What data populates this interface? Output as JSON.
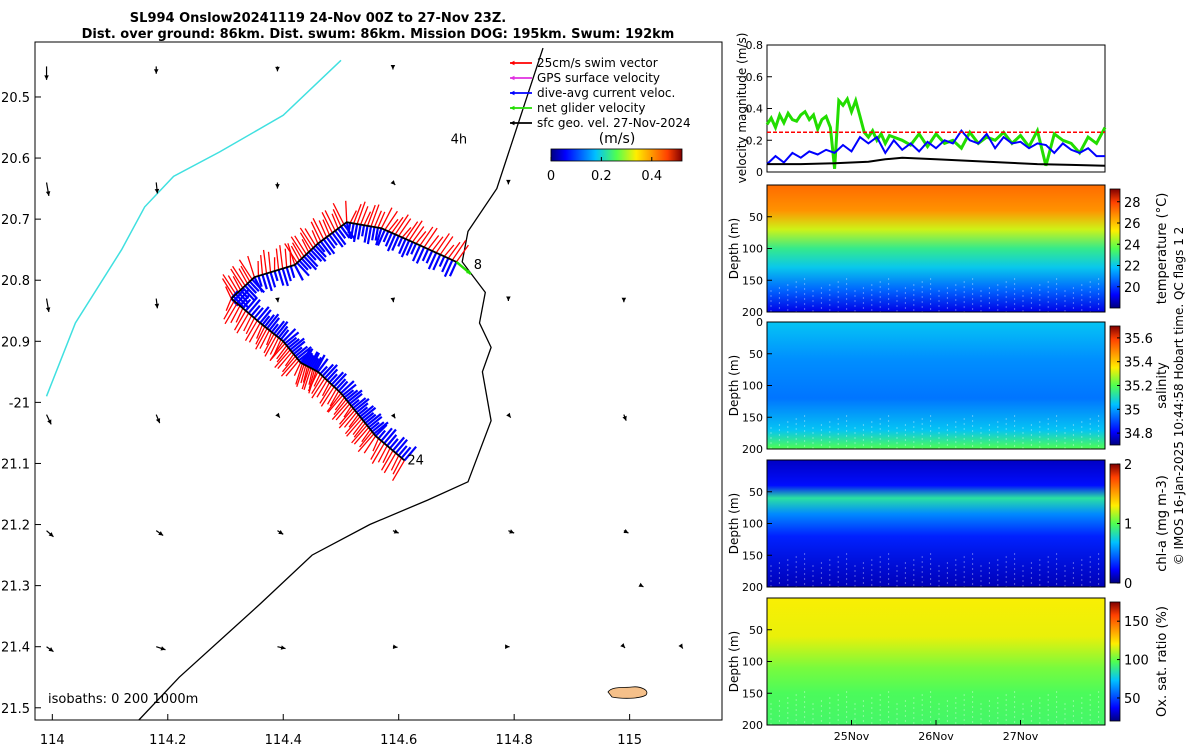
{
  "title": {
    "line1": "SL994 Onslow20241119 24-Nov 00Z to 27-Nov 23Z.",
    "line2": "Dist. over ground: 86km. Dist. swum: 86km. Mission DOG: 195km. Swum: 192km"
  },
  "copyright": "© IMOS 16-Jan-2025 10:44:58 Hobart time. QC flags 1  2",
  "colors": {
    "swim": "#ff0000",
    "gps": "#e030e0",
    "dive": "#0000ff",
    "net": "#22dd00",
    "sfc": "#000000",
    "isobath200": "#40e0e0",
    "land": "#f5c08a"
  },
  "chart_data": [
    {
      "type": "map",
      "xlim": [
        113.97,
        115.16
      ],
      "ylim": [
        -21.52,
        -20.41
      ],
      "xticks": [
        114,
        114.2,
        114.4,
        114.6,
        114.8,
        115
      ],
      "xtick_labels": [
        "114",
        "114.2",
        "114.4",
        "114.6",
        "114.8",
        "115"
      ],
      "yticks": [
        -20.5,
        -20.6,
        -20.7,
        -20.8,
        -20.9,
        -21,
        -21.1,
        -21.2,
        -21.3,
        -21.4,
        -21.5
      ],
      "ytick_labels": [
        "20.5",
        "20.6",
        "20.7",
        "20.8",
        "20.9",
        "-21",
        "21.1",
        "21.2",
        "21.3",
        "21.4",
        "21.5"
      ],
      "legend": [
        {
          "key": "swim",
          "label": "25cm/s swim vector"
        },
        {
          "key": "gps",
          "label": "GPS surface velocity"
        },
        {
          "key": "dive",
          "label": "dive-avg current veloc."
        },
        {
          "key": "net",
          "label": "net glider velocity"
        },
        {
          "key": "sfc",
          "label": "sfc geo. vel. 27-Nov-2024"
        }
      ],
      "colorbar": {
        "label": "(m/s)",
        "ticks": [
          0,
          0.2,
          0.4
        ],
        "range": [
          0,
          0.52
        ]
      },
      "isobath_label": "isobaths: 0   200  1000m",
      "annotations": [
        {
          "text": "4h",
          "lon": 114.69,
          "lat": -20.57
        },
        {
          "text": "8",
          "lon": 114.73,
          "lat": -20.775
        },
        {
          "text": "24",
          "lon": 114.615,
          "lat": -21.095
        }
      ],
      "glider_track": [
        [
          114.31,
          -20.83
        ],
        [
          114.35,
          -20.795
        ],
        [
          114.42,
          -20.775
        ],
        [
          114.46,
          -20.74
        ],
        [
          114.51,
          -20.705
        ],
        [
          114.57,
          -20.715
        ],
        [
          114.63,
          -20.74
        ],
        [
          114.7,
          -20.77
        ],
        [
          114.31,
          -20.83
        ],
        [
          114.36,
          -20.87
        ],
        [
          114.4,
          -20.9
        ],
        [
          114.43,
          -20.935
        ],
        [
          114.46,
          -20.95
        ],
        [
          114.5,
          -20.985
        ],
        [
          114.53,
          -21.02
        ],
        [
          114.56,
          -21.055
        ],
        [
          114.61,
          -21.095
        ]
      ],
      "isobath_1000m": [
        [
          114.85,
          -20.42
        ],
        [
          114.77,
          -20.65
        ],
        [
          114.72,
          -20.72
        ],
        [
          114.71,
          -20.77
        ],
        [
          114.75,
          -20.82
        ],
        [
          114.74,
          -20.87
        ],
        [
          114.76,
          -20.91
        ],
        [
          114.745,
          -20.95
        ],
        [
          114.76,
          -21.03
        ],
        [
          114.72,
          -21.13
        ],
        [
          114.65,
          -21.16
        ],
        [
          114.55,
          -21.2
        ],
        [
          114.45,
          -21.25
        ],
        [
          114.36,
          -21.33
        ],
        [
          114.22,
          -21.45
        ],
        [
          114.15,
          -21.52
        ]
      ],
      "isobath_200m": [
        [
          114.5,
          -20.44
        ],
        [
          114.4,
          -20.53
        ],
        [
          114.29,
          -20.59
        ],
        [
          114.21,
          -20.63
        ],
        [
          114.16,
          -20.68
        ],
        [
          114.12,
          -20.75
        ],
        [
          114.04,
          -20.87
        ],
        [
          113.99,
          -20.99
        ]
      ],
      "sfc_vectors": [
        [
          113.99,
          -20.45,
          0.0,
          -0.022
        ],
        [
          114.18,
          -20.45,
          0.0,
          -0.012
        ],
        [
          114.39,
          -20.45,
          0.0,
          -0.008
        ],
        [
          114.59,
          -20.45,
          0.0,
          -0.005
        ],
        [
          113.99,
          -20.64,
          0.004,
          -0.022
        ],
        [
          114.18,
          -20.64,
          0.002,
          -0.018
        ],
        [
          114.39,
          -20.64,
          0.0,
          -0.01
        ],
        [
          114.59,
          -20.64,
          0.004,
          -0.004
        ],
        [
          114.79,
          -20.64,
          0.0,
          -0.003
        ],
        [
          113.99,
          -20.83,
          0.004,
          -0.022
        ],
        [
          114.18,
          -20.83,
          0.002,
          -0.016
        ],
        [
          114.39,
          -20.83,
          0.001,
          -0.006
        ],
        [
          114.59,
          -20.83,
          0.001,
          -0.006
        ],
        [
          114.79,
          -20.83,
          0.0,
          -0.004
        ],
        [
          114.99,
          -20.83,
          0.0,
          -0.006
        ],
        [
          113.99,
          -21.02,
          0.008,
          -0.016
        ],
        [
          114.18,
          -21.02,
          0.006,
          -0.014
        ],
        [
          114.39,
          -21.02,
          0.004,
          -0.005
        ],
        [
          114.59,
          -21.02,
          0.004,
          -0.006
        ],
        [
          114.79,
          -21.02,
          0.004,
          -0.005
        ],
        [
          114.99,
          -21.02,
          0.004,
          -0.01
        ],
        [
          113.99,
          -21.21,
          0.012,
          -0.01
        ],
        [
          114.18,
          -21.21,
          0.012,
          -0.008
        ],
        [
          114.39,
          -21.21,
          0.01,
          -0.006
        ],
        [
          114.59,
          -21.21,
          0.01,
          -0.004
        ],
        [
          114.79,
          -21.21,
          0.01,
          -0.004
        ],
        [
          114.99,
          -21.21,
          0.008,
          -0.004
        ],
        [
          115.02,
          -21.3,
          0.004,
          -0.002
        ],
        [
          113.99,
          -21.4,
          0.012,
          -0.008
        ],
        [
          114.18,
          -21.4,
          0.016,
          -0.005
        ],
        [
          114.39,
          -21.4,
          0.014,
          -0.003
        ],
        [
          114.59,
          -21.4,
          0.008,
          -0.001
        ],
        [
          114.79,
          -21.4,
          0.002,
          0.0
        ],
        [
          114.99,
          -21.4,
          0.002,
          -0.002
        ],
        [
          115.09,
          -21.4,
          0.002,
          -0.003
        ]
      ]
    },
    {
      "type": "line",
      "ylabel": "velocity magnitude (m/s)",
      "ylim": [
        0,
        0.8
      ],
      "yticks": [
        0,
        0.2,
        0.4,
        0.6,
        0.8
      ],
      "xlim": [
        24.0,
        28.0
      ],
      "series": [
        {
          "name": "net glider velocity",
          "color": "#22dd00",
          "x": [
            24.0,
            24.05,
            24.1,
            24.15,
            24.2,
            24.25,
            24.3,
            24.35,
            24.4,
            24.45,
            24.5,
            24.55,
            24.6,
            24.65,
            24.7,
            24.75,
            24.8,
            24.85,
            24.9,
            24.95,
            25.0,
            25.05,
            25.1,
            25.15,
            25.2,
            25.25,
            25.3,
            25.35,
            25.4,
            25.45,
            25.5,
            25.6,
            25.7,
            25.8,
            25.9,
            26.0,
            26.1,
            26.2,
            26.3,
            26.4,
            26.5,
            26.6,
            26.7,
            26.8,
            26.9,
            27.0,
            27.1,
            27.2,
            27.3,
            27.4,
            27.5,
            27.6,
            27.7,
            27.8,
            27.9,
            28.0
          ],
          "y": [
            0.3,
            0.34,
            0.28,
            0.36,
            0.31,
            0.37,
            0.33,
            0.32,
            0.36,
            0.38,
            0.33,
            0.36,
            0.27,
            0.33,
            0.35,
            0.28,
            0.02,
            0.45,
            0.42,
            0.46,
            0.38,
            0.45,
            0.35,
            0.25,
            0.22,
            0.26,
            0.2,
            0.24,
            0.18,
            0.23,
            0.22,
            0.2,
            0.17,
            0.24,
            0.16,
            0.24,
            0.18,
            0.2,
            0.15,
            0.25,
            0.18,
            0.22,
            0.2,
            0.25,
            0.18,
            0.23,
            0.16,
            0.26,
            0.04,
            0.24,
            0.2,
            0.18,
            0.12,
            0.22,
            0.18,
            0.28
          ]
        },
        {
          "name": "dive-avg current veloc.",
          "color": "#0000ff",
          "x": [
            24.0,
            24.1,
            24.2,
            24.3,
            24.4,
            24.5,
            24.6,
            24.7,
            24.8,
            24.9,
            25.0,
            25.1,
            25.2,
            25.3,
            25.4,
            25.5,
            25.6,
            25.7,
            25.8,
            25.9,
            26.0,
            26.1,
            26.2,
            26.3,
            26.4,
            26.5,
            26.6,
            26.7,
            26.8,
            26.9,
            27.0,
            27.1,
            27.2,
            27.3,
            27.4,
            27.5,
            27.6,
            27.7,
            27.8,
            27.9,
            28.0
          ],
          "y": [
            0.05,
            0.1,
            0.06,
            0.12,
            0.09,
            0.13,
            0.11,
            0.14,
            0.12,
            0.17,
            0.13,
            0.22,
            0.18,
            0.22,
            0.12,
            0.2,
            0.14,
            0.18,
            0.13,
            0.19,
            0.15,
            0.2,
            0.18,
            0.26,
            0.2,
            0.18,
            0.24,
            0.15,
            0.22,
            0.18,
            0.19,
            0.15,
            0.18,
            0.17,
            0.12,
            0.18,
            0.14,
            0.12,
            0.15,
            0.1,
            0.1
          ]
        },
        {
          "name": "reference 0.25 m/s",
          "color": "#ff0000",
          "x": [
            24.0,
            28.0
          ],
          "y": [
            0.25,
            0.25
          ]
        },
        {
          "name": "surface geostrophic",
          "color": "#000000",
          "x": [
            24.0,
            24.4,
            24.8,
            25.0,
            25.2,
            25.4,
            25.6,
            25.8,
            26.0,
            26.4,
            26.8,
            27.2,
            27.6,
            28.0
          ],
          "y": [
            0.05,
            0.05,
            0.055,
            0.06,
            0.065,
            0.08,
            0.09,
            0.085,
            0.08,
            0.07,
            0.06,
            0.05,
            0.045,
            0.04
          ]
        }
      ]
    },
    {
      "type": "heatmap",
      "variable": "temperature",
      "ylabel": "Depth (m)",
      "clabel": "temperature (°C)",
      "ylim": [
        200,
        0
      ],
      "yticks": [
        50,
        100,
        150,
        200
      ],
      "clim": [
        18,
        29.2
      ],
      "cticks": [
        20,
        22,
        24,
        26,
        28
      ],
      "layers": [
        {
          "depth": 0,
          "value": 27.3
        },
        {
          "depth": 40,
          "value": 26.7
        },
        {
          "depth": 70,
          "value": 24.8
        },
        {
          "depth": 100,
          "value": 23.0
        },
        {
          "depth": 130,
          "value": 22.0
        },
        {
          "depth": 165,
          "value": 20.6
        },
        {
          "depth": 200,
          "value": 19.0
        }
      ]
    },
    {
      "type": "heatmap",
      "variable": "salinity",
      "ylabel": "Depth (m)",
      "clabel": "salinity",
      "ylim": [
        200,
        0
      ],
      "yticks": [
        0,
        50,
        100,
        150,
        200
      ],
      "clim": [
        34.7,
        35.7
      ],
      "cticks": [
        34.8,
        35,
        35.2,
        35.4,
        35.6
      ],
      "layers": [
        {
          "depth": 0,
          "value": 35.05
        },
        {
          "depth": 60,
          "value": 34.98
        },
        {
          "depth": 120,
          "value": 34.95
        },
        {
          "depth": 170,
          "value": 35.05
        },
        {
          "depth": 200,
          "value": 35.2
        }
      ]
    },
    {
      "type": "heatmap",
      "variable": "chl-a",
      "ylabel": "Depth (m)",
      "clabel": "chl-a (mg m-3)",
      "ylim": [
        200,
        0
      ],
      "yticks": [
        50,
        100,
        150,
        200
      ],
      "clim": [
        0,
        2
      ],
      "cticks": [
        0,
        1,
        2
      ],
      "layers": [
        {
          "depth": 0,
          "value": 0.12
        },
        {
          "depth": 40,
          "value": 0.25
        },
        {
          "depth": 60,
          "value": 0.85
        },
        {
          "depth": 85,
          "value": 0.55
        },
        {
          "depth": 120,
          "value": 0.3
        },
        {
          "depth": 200,
          "value": 0.1
        }
      ]
    },
    {
      "type": "heatmap",
      "variable": "oxygen saturation",
      "ylabel": "Depth (m)",
      "clabel": "Ox. sat. ratio (%)",
      "ylim": [
        200,
        0
      ],
      "yticks": [
        50,
        100,
        150,
        200
      ],
      "clim": [
        20,
        175
      ],
      "cticks": [
        50,
        100,
        150
      ],
      "xticks": [
        25,
        26,
        27
      ],
      "xtick_labels": [
        "25Nov",
        "26Nov",
        "27Nov"
      ],
      "layers": [
        {
          "depth": 0,
          "value": 120
        },
        {
          "depth": 60,
          "value": 118
        },
        {
          "depth": 110,
          "value": 103
        },
        {
          "depth": 150,
          "value": 96
        },
        {
          "depth": 200,
          "value": 94
        }
      ]
    }
  ]
}
